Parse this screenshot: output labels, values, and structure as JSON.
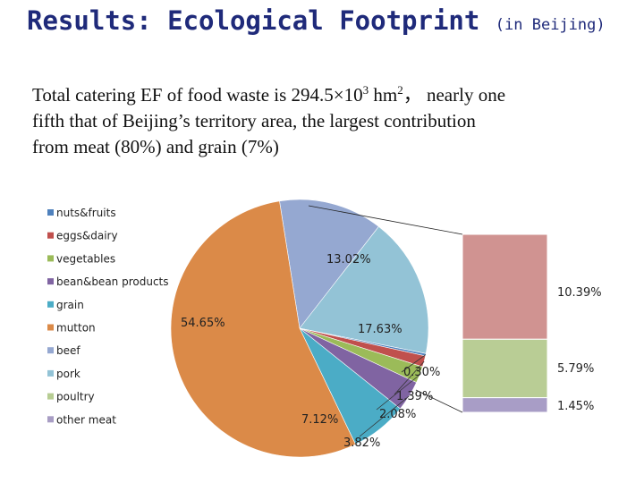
{
  "title": {
    "main": "Results: Ecological Footprint",
    "sub": "(in Beijing)"
  },
  "summary": {
    "line1_prefix": "Total catering EF of food waste is 294.5×10",
    "line1_exp": "3",
    "line1_unit": " hm",
    "line1_unit_exp": "2",
    "line1_suffix": "，  nearly one",
    "line2": "fifth that of Beijing’s territory area, the largest contribution",
    "line3": "from meat (80%) and grain (7%)"
  },
  "colors": {
    "nuts_fruits": "#4f81bd",
    "eggs_dairy": "#c0504d",
    "vegetables": "#9bbb59",
    "bean_products": "#8064a2",
    "grain": "#4bacc6",
    "mutton": "#db8a48",
    "beef": "#95a8d1",
    "pork": "#93c3d6",
    "poultry": "#b7cd93",
    "other_meat": "#a89dc4",
    "bar_pink": "#d09391",
    "bar_green": "#b9cd95",
    "bar_purple": "#a89dc6"
  },
  "chart_data": {
    "type": "pie",
    "legend": [
      "nuts&fruits",
      "eggs&dairy",
      "vegetables",
      "bean&bean products",
      "grain",
      "mutton",
      "beef",
      "pork",
      "poultry",
      "other meat"
    ],
    "legend_keys": [
      "nuts_fruits",
      "eggs_dairy",
      "vegetables",
      "bean_products",
      "grain",
      "mutton",
      "beef",
      "pork",
      "poultry",
      "other_meat"
    ],
    "slices": [
      {
        "key": "beef",
        "value": 13.02,
        "label": "13.02%"
      },
      {
        "key": "pork",
        "value": 17.63,
        "label": "17.63%"
      },
      {
        "key": "nuts_fruits",
        "value": 0.3,
        "label": "0.30%"
      },
      {
        "key": "eggs_dairy",
        "value": 1.39,
        "label": "1.39%"
      },
      {
        "key": "vegetables",
        "value": 2.08,
        "label": "2.08%"
      },
      {
        "key": "bean_products",
        "value": 3.82,
        "label": "3.82%"
      },
      {
        "key": "grain",
        "value": 7.12,
        "label": "7.12%"
      },
      {
        "key": "mutton",
        "value": 54.65,
        "label": "54.65%"
      }
    ],
    "breakout": [
      {
        "key": "bar_pink",
        "value": 10.39,
        "label": "10.39%"
      },
      {
        "key": "bar_green",
        "value": 5.79,
        "label": "5.79%"
      },
      {
        "key": "bar_purple",
        "value": 1.45,
        "label": "1.45%"
      }
    ]
  }
}
